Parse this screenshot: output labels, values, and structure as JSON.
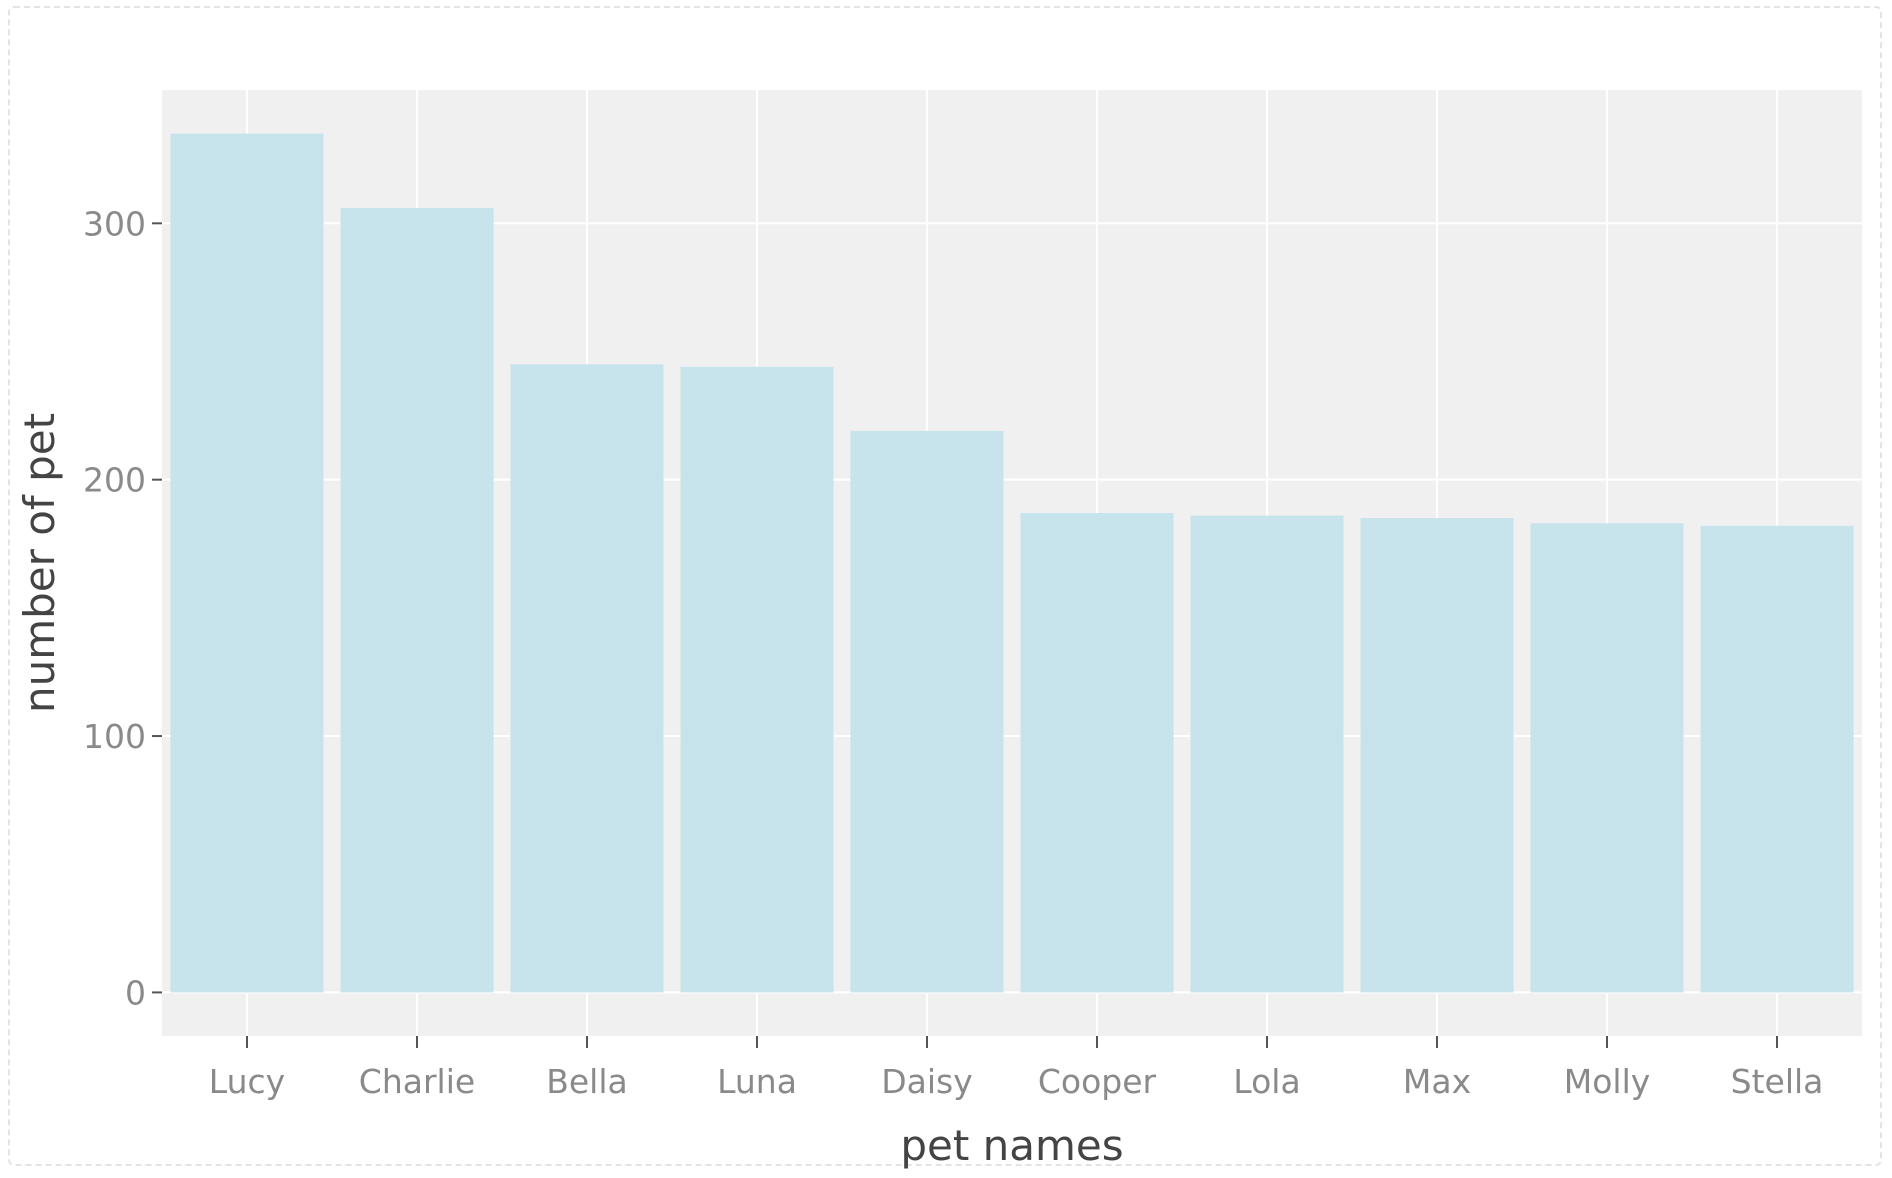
{
  "chart_data": {
    "type": "bar",
    "title": "",
    "xlabel": "pet names",
    "ylabel": "number of pet",
    "categories": [
      "Lucy",
      "Charlie",
      "Bella",
      "Luna",
      "Daisy",
      "Cooper",
      "Lola",
      "Max",
      "Molly",
      "Stella"
    ],
    "values": [
      335,
      306,
      245,
      244,
      219,
      187,
      186,
      185,
      183,
      182
    ],
    "ylim": [
      -17,
      352
    ],
    "yticks": [
      0,
      100,
      200,
      300
    ],
    "ytick_labels": [
      "0",
      "100",
      "200",
      "300"
    ],
    "grid": true,
    "legend": "none",
    "colors": {
      "bar": "#c7e3ec",
      "panel": "#f0f0f0",
      "grid": "#ffffff",
      "tick": "#555555"
    }
  }
}
